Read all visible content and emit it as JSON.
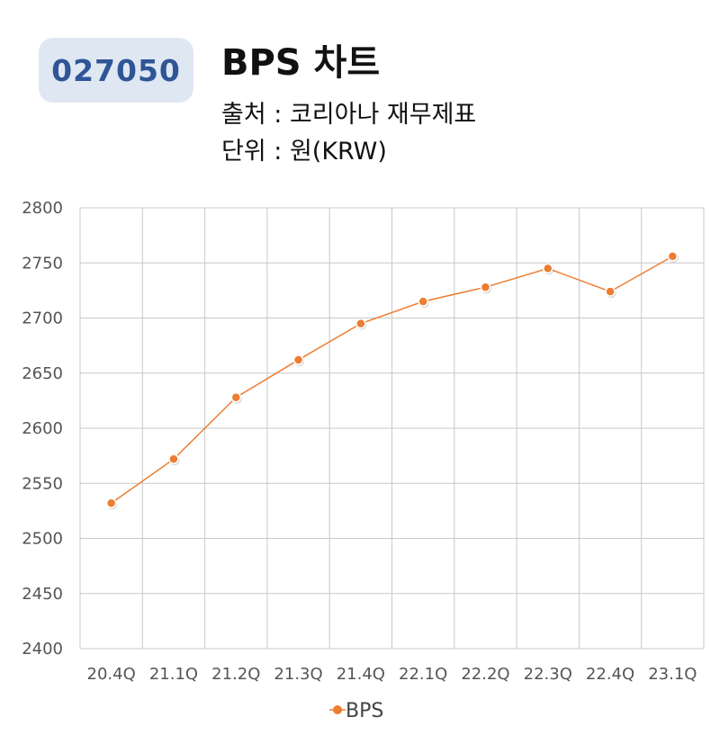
{
  "header": {
    "code": "027050",
    "title": "BPS 차트",
    "source": "출처 : 코리아나 재무제표",
    "unit": "단위 : 원(KRW)"
  },
  "colors": {
    "series": "#ed7d31",
    "badge_bg": "#dfe7f3",
    "badge_text": "#2f5597",
    "grid": "#c8c8c8"
  },
  "chart_data": {
    "type": "line",
    "categories": [
      "20.4Q",
      "21.1Q",
      "21.2Q",
      "21.3Q",
      "21.4Q",
      "22.1Q",
      "22.2Q",
      "22.3Q",
      "22.4Q",
      "23.1Q"
    ],
    "series": [
      {
        "name": "BPS",
        "values": [
          2532,
          2572,
          2628,
          2662,
          2695,
          2715,
          2728,
          2745,
          2724,
          2756
        ]
      }
    ],
    "ylim": [
      2400,
      2800
    ],
    "yticks": [
      "2800",
      "2750",
      "2700",
      "2650",
      "2600",
      "2550",
      "2500",
      "2450",
      "2400"
    ],
    "grid": true,
    "legend": "bottom"
  }
}
